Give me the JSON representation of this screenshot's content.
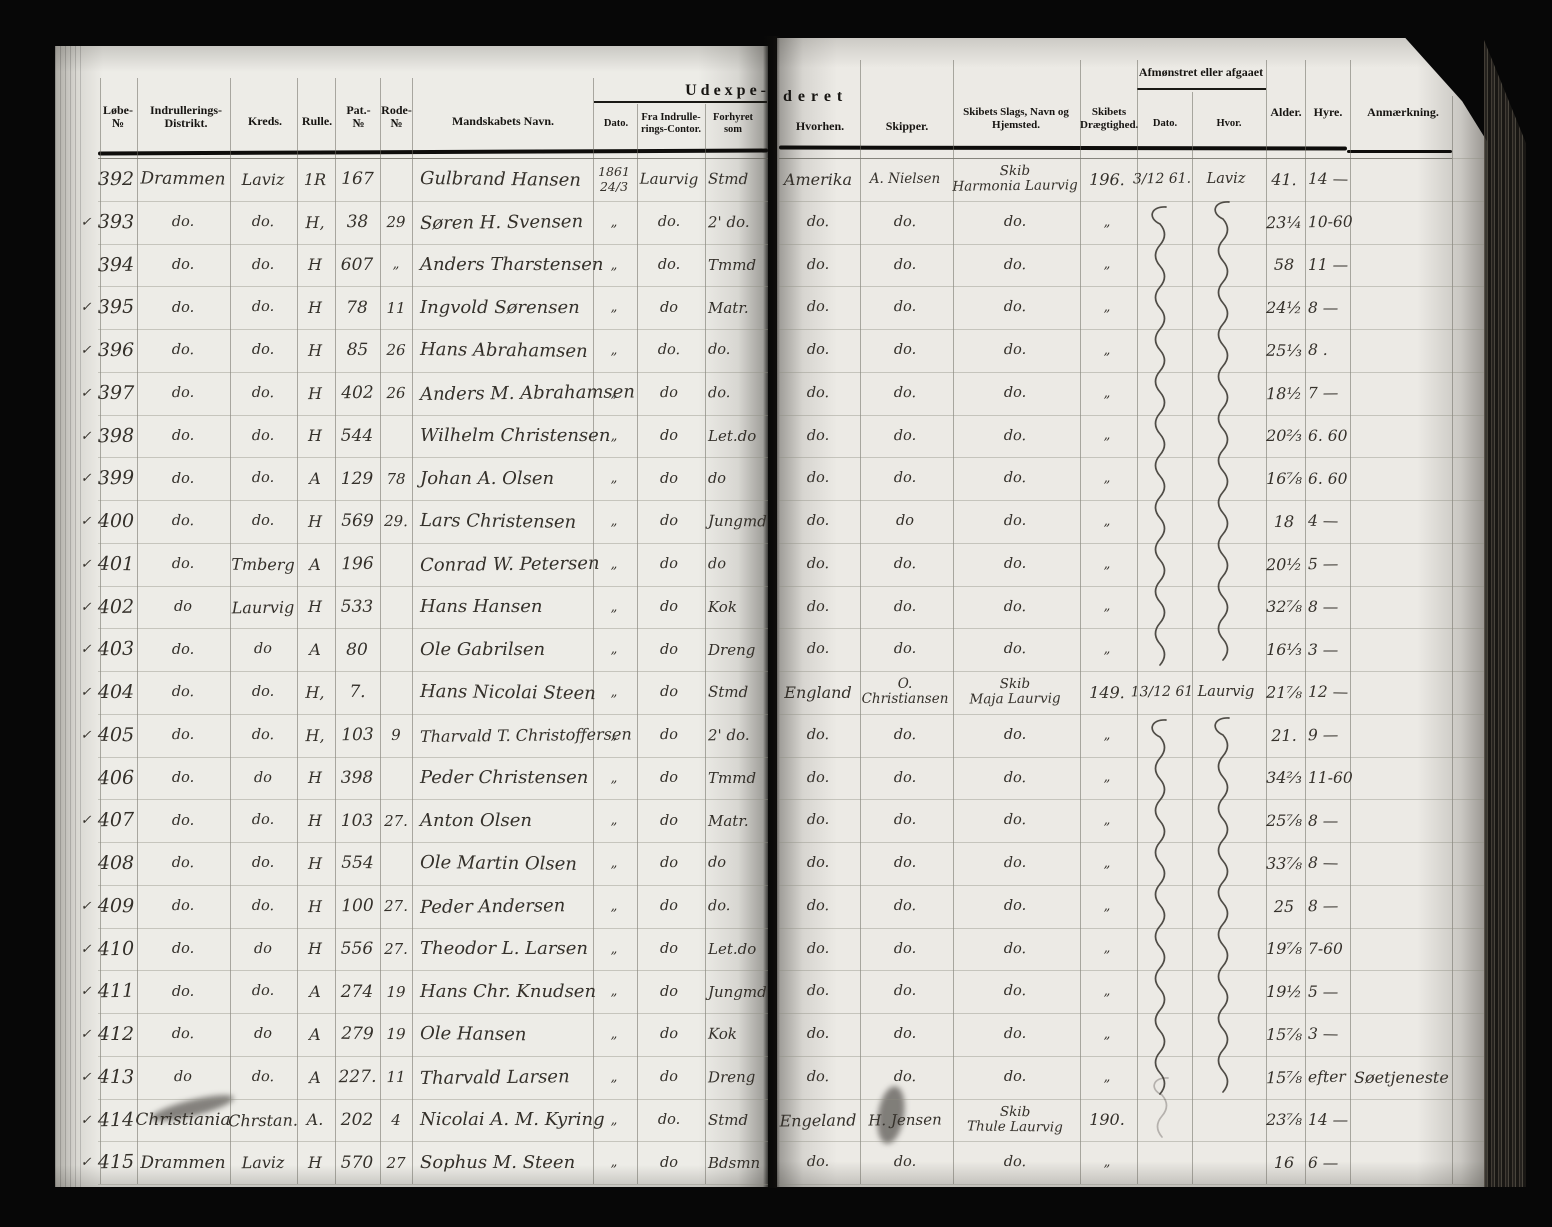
{
  "spread_header": {
    "left_fragment": "Udexpe-",
    "right_fragment": "deret"
  },
  "left_page": {
    "columns": {
      "loebe_l1": "Løbe-",
      "loebe_l2": "№",
      "distrikt_l1": "Indrullerings-",
      "distrikt_l2": "Distrikt.",
      "kreds": "Kreds.",
      "rulle": "Rulle.",
      "pat_l1": "Pat.-",
      "pat_l2": "№",
      "rode_l1": "Rode-",
      "rode_l2": "№",
      "navn": "Mandskabets Navn.",
      "dato": "Dato.",
      "fra_l1": "Fra Indrulle-",
      "fra_l2": "rings-Contor.",
      "forhyret_l1": "Forhyret",
      "forhyret_l2": "som"
    }
  },
  "right_page": {
    "group": "Afmønstret eller afgaaet",
    "columns": {
      "hvorhen": "Hvorhen.",
      "skipper": "Skipper.",
      "skib_l1": "Skibets Slags, Navn og",
      "skib_l2": "Hjemsted.",
      "dragt_l1": "Skibets",
      "dragt_l2": "Drægtighed.",
      "dato": "Dato.",
      "hvor": "Hvor.",
      "alder": "Alder.",
      "hyre": "Hyre.",
      "anm": "Anmærkning."
    }
  },
  "marks": {
    "check": "✓",
    "ditto": "do.",
    "ditto_short": "do",
    "quote": "„"
  },
  "rows": [
    {
      "check": false,
      "no": "392",
      "distrikt": "Drammen",
      "kreds": "Laviz",
      "rulle": "1R",
      "pat": "167",
      "rode": "",
      "navn": "Gulbrand Hansen",
      "dato": "1861|24/3",
      "fra": "Laurvig",
      "forhyret": "Stmd",
      "hvorhen": "Amerika",
      "skipper": "A. Nielsen",
      "skib": "Skib|Harmonia Laurvig",
      "dragt": "196.",
      "am_dato": "3/12 61.",
      "am_hvor": "Laviz",
      "alder": "41.",
      "hyre": "14 —",
      "anm": ""
    },
    {
      "check": true,
      "no": "393",
      "distrikt": "do.",
      "kreds": "do.",
      "rulle": "H,",
      "pat": "38",
      "rode": "29",
      "navn": "Søren H. Svensen",
      "dato": "„",
      "fra": "do.",
      "forhyret": "2' do.",
      "hvorhen": "do.",
      "skipper": "do.",
      "skib": "do.",
      "dragt": "„",
      "am_dato": "",
      "am_hvor": "",
      "alder": "23¼",
      "hyre": "10-60",
      "anm": ""
    },
    {
      "check": false,
      "no": "394",
      "distrikt": "do.",
      "kreds": "do.",
      "rulle": "H",
      "pat": "607",
      "rode": "„",
      "navn": "Anders Tharstensen",
      "dato": "„",
      "fra": "do.",
      "forhyret": "Tmmd",
      "hvorhen": "do.",
      "skipper": "do.",
      "skib": "do.",
      "dragt": "„",
      "am_dato": "",
      "am_hvor": "",
      "alder": "58",
      "hyre": "11 —",
      "anm": ""
    },
    {
      "check": true,
      "no": "395",
      "distrikt": "do.",
      "kreds": "do.",
      "rulle": "H",
      "pat": "78",
      "rode": "11",
      "navn": "Ingvold Sørensen",
      "dato": "„",
      "fra": "do",
      "forhyret": "Matr.",
      "hvorhen": "do.",
      "skipper": "do.",
      "skib": "do.",
      "dragt": "„",
      "am_dato": "",
      "am_hvor": "",
      "alder": "24½",
      "hyre": "8 —",
      "anm": ""
    },
    {
      "check": true,
      "no": "396",
      "distrikt": "do.",
      "kreds": "do.",
      "rulle": "H",
      "pat": "85",
      "rode": "26",
      "navn": "Hans Abrahamsen",
      "dato": "„",
      "fra": "do.",
      "forhyret": "do.",
      "hvorhen": "do.",
      "skipper": "do.",
      "skib": "do.",
      "dragt": "„",
      "am_dato": "",
      "am_hvor": "",
      "alder": "25⅓",
      "hyre": "8 .",
      "anm": ""
    },
    {
      "check": true,
      "no": "397",
      "distrikt": "do.",
      "kreds": "do.",
      "rulle": "H",
      "pat": "402",
      "rode": "26",
      "navn": "Anders M. Abrahamsen",
      "dato": "„",
      "fra": "do",
      "forhyret": "do.",
      "hvorhen": "do.",
      "skipper": "do.",
      "skib": "do.",
      "dragt": "„",
      "am_dato": "",
      "am_hvor": "",
      "alder": "18½",
      "hyre": "7 —",
      "anm": ""
    },
    {
      "check": true,
      "no": "398",
      "distrikt": "do.",
      "kreds": "do.",
      "rulle": "H",
      "pat": "544",
      "rode": "",
      "navn": "Wilhelm Christensen",
      "dato": "„",
      "fra": "do",
      "forhyret": "Let.do",
      "hvorhen": "do.",
      "skipper": "do.",
      "skib": "do.",
      "dragt": "„",
      "am_dato": "",
      "am_hvor": "",
      "alder": "20⅔",
      "hyre": "6. 60",
      "anm": ""
    },
    {
      "check": true,
      "no": "399",
      "distrikt": "do.",
      "kreds": "do.",
      "rulle": "A",
      "pat": "129",
      "rode": "78",
      "navn": "Johan A. Olsen",
      "dato": "„",
      "fra": "do",
      "forhyret": "do",
      "hvorhen": "do.",
      "skipper": "do.",
      "skib": "do.",
      "dragt": "„",
      "am_dato": "",
      "am_hvor": "",
      "alder": "16⅞",
      "hyre": "6. 60",
      "anm": ""
    },
    {
      "check": true,
      "no": "400",
      "distrikt": "do.",
      "kreds": "do.",
      "rulle": "H",
      "pat": "569",
      "rode": "29.",
      "navn": "Lars Christensen",
      "dato": "„",
      "fra": "do",
      "forhyret": "Jungmd",
      "hvorhen": "do.",
      "skipper": "do",
      "skib": "do.",
      "dragt": "„",
      "am_dato": "",
      "am_hvor": "",
      "alder": "18",
      "hyre": "4 —",
      "anm": ""
    },
    {
      "check": true,
      "no": "401",
      "distrikt": "do.",
      "kreds": "Tmberg",
      "rulle": "A",
      "pat": "196",
      "rode": "",
      "navn": "Conrad W. Petersen",
      "dato": "„",
      "fra": "do",
      "forhyret": "do",
      "hvorhen": "do.",
      "skipper": "do.",
      "skib": "do.",
      "dragt": "„",
      "am_dato": "",
      "am_hvor": "",
      "alder": "20½",
      "hyre": "5 —",
      "anm": ""
    },
    {
      "check": true,
      "no": "402",
      "distrikt": "do",
      "kreds": "Laurvig",
      "rulle": "H",
      "pat": "533",
      "rode": "",
      "navn": "Hans Hansen",
      "dato": "„",
      "fra": "do",
      "forhyret": "Kok",
      "hvorhen": "do.",
      "skipper": "do.",
      "skib": "do.",
      "dragt": "„",
      "am_dato": "",
      "am_hvor": "",
      "alder": "32⅞",
      "hyre": "8 —",
      "anm": ""
    },
    {
      "check": true,
      "no": "403",
      "distrikt": "do.",
      "kreds": "do",
      "rulle": "A",
      "pat": "80",
      "rode": "",
      "navn": "Ole Gabrilsen",
      "dato": "„",
      "fra": "do",
      "forhyret": "Dreng",
      "hvorhen": "do.",
      "skipper": "do.",
      "skib": "do.",
      "dragt": "„",
      "am_dato": "",
      "am_hvor": "",
      "alder": "16⅓",
      "hyre": "3 —",
      "anm": ""
    },
    {
      "check": true,
      "no": "404",
      "distrikt": "do.",
      "kreds": "do.",
      "rulle": "H,",
      "pat": "7.",
      "rode": "",
      "navn": "Hans Nicolai Steen",
      "dato": "„",
      "fra": "do",
      "forhyret": "Stmd",
      "hvorhen": "England",
      "skipper": "O.|Christiansen",
      "skib": "Skib|Maja Laurvig",
      "dragt": "149.",
      "am_dato": "13/12 61",
      "am_hvor": "Laurvig",
      "alder": "21⅞",
      "hyre": "12 —",
      "anm": ""
    },
    {
      "check": true,
      "no": "405",
      "distrikt": "do.",
      "kreds": "do.",
      "rulle": "H,",
      "pat": "103",
      "rode": "9",
      "navn": "Tharvald T. Christoffersen",
      "dato": "„",
      "fra": "do",
      "forhyret": "2' do.",
      "hvorhen": "do.",
      "skipper": "do.",
      "skib": "do.",
      "dragt": "„",
      "am_dato": "",
      "am_hvor": "",
      "alder": "21.",
      "hyre": "9 —",
      "anm": ""
    },
    {
      "check": false,
      "no": "406",
      "distrikt": "do.",
      "kreds": "do",
      "rulle": "H",
      "pat": "398",
      "rode": "",
      "navn": "Peder Christensen",
      "dato": "„",
      "fra": "do",
      "forhyret": "Tmmd",
      "hvorhen": "do.",
      "skipper": "do.",
      "skib": "do.",
      "dragt": "„",
      "am_dato": "",
      "am_hvor": "",
      "alder": "34⅔",
      "hyre": "11-60",
      "anm": ""
    },
    {
      "check": true,
      "no": "407",
      "distrikt": "do.",
      "kreds": "do.",
      "rulle": "H",
      "pat": "103",
      "rode": "27.",
      "navn": "Anton Olsen",
      "dato": "„",
      "fra": "do",
      "forhyret": "Matr.",
      "hvorhen": "do.",
      "skipper": "do.",
      "skib": "do.",
      "dragt": "„",
      "am_dato": "",
      "am_hvor": "",
      "alder": "25⅞",
      "hyre": "8 —",
      "anm": ""
    },
    {
      "check": false,
      "no": "408",
      "distrikt": "do.",
      "kreds": "do.",
      "rulle": "H",
      "pat": "554",
      "rode": "",
      "navn": "Ole Martin Olsen",
      "dato": "„",
      "fra": "do",
      "forhyret": "do",
      "hvorhen": "do.",
      "skipper": "do.",
      "skib": "do.",
      "dragt": "„",
      "am_dato": "",
      "am_hvor": "",
      "alder": "33⅞",
      "hyre": "8 —",
      "anm": ""
    },
    {
      "check": true,
      "no": "409",
      "distrikt": "do.",
      "kreds": "do.",
      "rulle": "H",
      "pat": "100",
      "rode": "27.",
      "navn": "Peder Andersen",
      "dato": "„",
      "fra": "do",
      "forhyret": "do.",
      "hvorhen": "do.",
      "skipper": "do.",
      "skib": "do.",
      "dragt": "„",
      "am_dato": "",
      "am_hvor": "",
      "alder": "25",
      "hyre": "8 —",
      "anm": ""
    },
    {
      "check": true,
      "no": "410",
      "distrikt": "do.",
      "kreds": "do",
      "rulle": "H",
      "pat": "556",
      "rode": "27.",
      "navn": "Theodor L. Larsen",
      "dato": "„",
      "fra": "do",
      "forhyret": "Let.do",
      "hvorhen": "do.",
      "skipper": "do.",
      "skib": "do.",
      "dragt": "„",
      "am_dato": "",
      "am_hvor": "",
      "alder": "19⅞",
      "hyre": "7-60",
      "anm": ""
    },
    {
      "check": true,
      "no": "411",
      "distrikt": "do.",
      "kreds": "do.",
      "rulle": "A",
      "pat": "274",
      "rode": "19",
      "navn": "Hans Chr. Knudsen",
      "dato": "„",
      "fra": "do",
      "forhyret": "Jungmd",
      "hvorhen": "do.",
      "skipper": "do.",
      "skib": "do.",
      "dragt": "„",
      "am_dato": "",
      "am_hvor": "",
      "alder": "19½",
      "hyre": "5 —",
      "anm": ""
    },
    {
      "check": true,
      "no": "412",
      "distrikt": "do.",
      "kreds": "do",
      "rulle": "A",
      "pat": "279",
      "rode": "19",
      "navn": "Ole Hansen",
      "dato": "„",
      "fra": "do",
      "forhyret": "Kok",
      "hvorhen": "do.",
      "skipper": "do.",
      "skib": "do.",
      "dragt": "„",
      "am_dato": "",
      "am_hvor": "",
      "alder": "15⅞",
      "hyre": "3 —",
      "anm": ""
    },
    {
      "check": true,
      "no": "413",
      "distrikt": "do",
      "kreds": "do.",
      "rulle": "A",
      "pat": "227.",
      "rode": "11",
      "navn": "Tharvald Larsen",
      "dato": "„",
      "fra": "do",
      "forhyret": "Dreng",
      "hvorhen": "do.",
      "skipper": "do.",
      "skib": "do.",
      "dragt": "„",
      "am_dato": "",
      "am_hvor": "",
      "alder": "15⅞",
      "hyre": "efter",
      "anm": "Søetjeneste"
    },
    {
      "check": true,
      "no": "414",
      "distrikt": "Christiania",
      "kreds": "Chrstan.",
      "rulle": "A.",
      "pat": "202",
      "rode": "4",
      "navn": "Nicolai A. M. Kyring",
      "dato": "„",
      "fra": "do.",
      "forhyret": "Stmd",
      "hvorhen": "Engeland",
      "skipper": "H. Jensen",
      "skib": "Skib|Thule Laurvig",
      "dragt": "190.",
      "am_dato": "",
      "am_hvor": "",
      "alder": "23⅞",
      "hyre": "14 —",
      "anm": ""
    },
    {
      "check": true,
      "no": "415",
      "distrikt": "Drammen",
      "kreds": "Laviz",
      "rulle": "H",
      "pat": "570",
      "rode": "27",
      "navn": "Sophus M. Steen",
      "dato": "„",
      "fra": "do",
      "forhyret": "Bdsmn",
      "hvorhen": "do.",
      "skipper": "do.",
      "skib": "do.",
      "dragt": "„",
      "am_dato": "",
      "am_hvor": "",
      "alder": "16",
      "hyre": "6 —",
      "anm": ""
    }
  ]
}
